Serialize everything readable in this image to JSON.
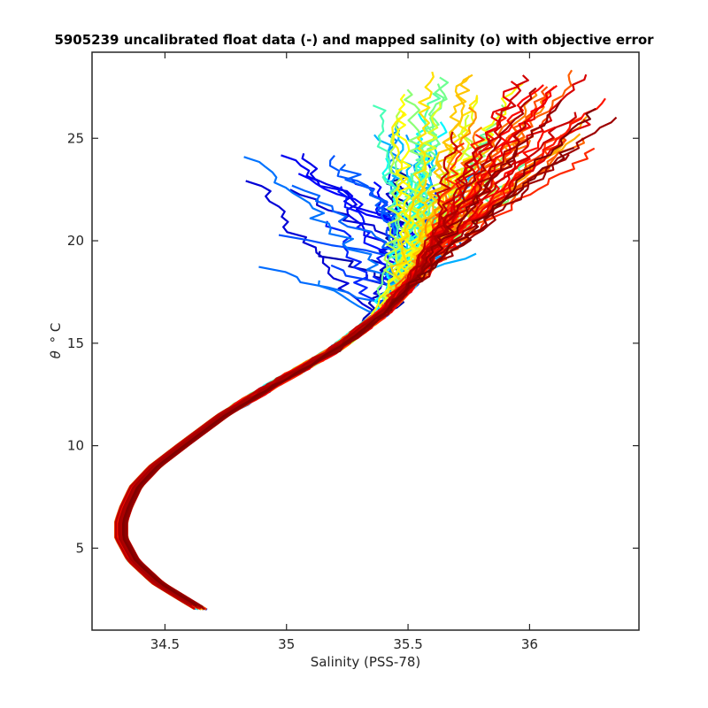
{
  "chart_data": {
    "type": "line",
    "title": "5905239 uncalibrated float data (-) and mapped salinity (o) with objective error",
    "xlabel": "Salinity (PSS-78)",
    "ylabel_symbol": "θ",
    "ylabel_unit": "° C",
    "xlim": [
      34.2,
      36.45
    ],
    "ylim": [
      1.0,
      29.2
    ],
    "x_ticks": [
      34.5,
      35,
      35.5,
      36
    ],
    "x_tick_labels": [
      "34.5",
      "35",
      "35.5",
      "36"
    ],
    "y_ticks": [
      5,
      10,
      15,
      20,
      25
    ],
    "y_tick_labels": [
      "5",
      "10",
      "15",
      "20",
      "25"
    ],
    "colormap": "jet",
    "colormap_stops": [
      "#00008f",
      "#0000ff",
      "#0080ff",
      "#00ffff",
      "#80ff80",
      "#ffff00",
      "#ff8000",
      "#ff0000",
      "#800000"
    ],
    "grid": false,
    "legend": "none",
    "series_count": 140,
    "backbone_profile": {
      "salinity": [
        34.65,
        34.58,
        34.47,
        34.37,
        34.32,
        34.32,
        34.34,
        34.38,
        34.46,
        34.57,
        34.74,
        34.95,
        35.2,
        35.4,
        35.52,
        35.58,
        35.64,
        35.71,
        35.8
      ],
      "theta": [
        2.0,
        2.5,
        3.3,
        4.4,
        5.5,
        6.3,
        7.0,
        8.0,
        9.0,
        10.0,
        11.5,
        13.0,
        14.7,
        16.5,
        18.0,
        19.5,
        20.5,
        21.5,
        22.5
      ]
    },
    "upper_ends": {
      "salinity_range": [
        34.75,
        36.35
      ],
      "theta_range": [
        12.8,
        28.8
      ]
    }
  }
}
